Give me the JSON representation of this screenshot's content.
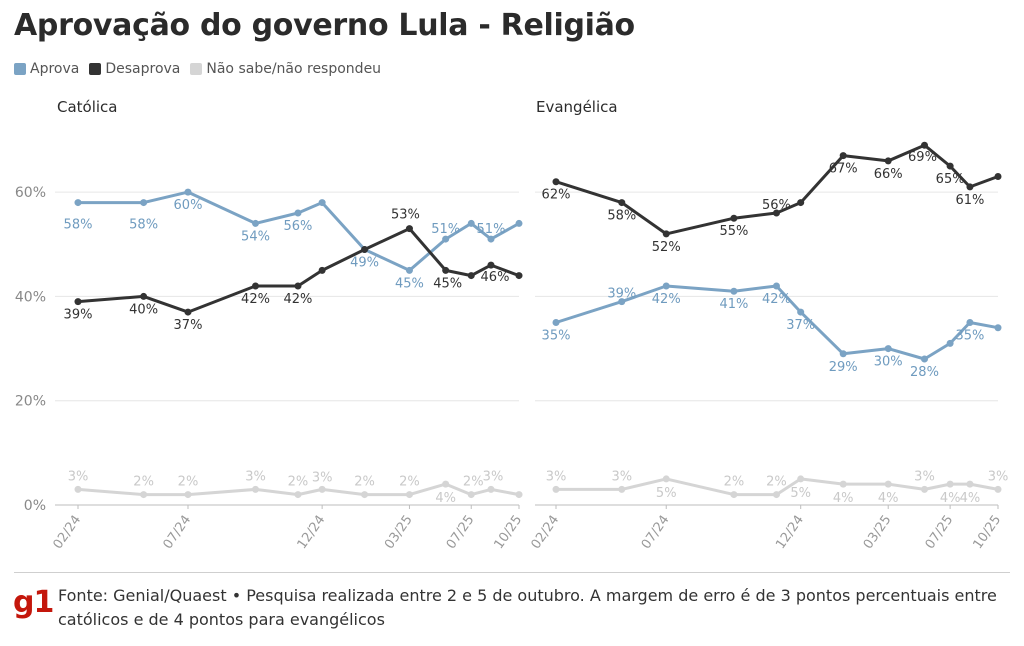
{
  "title": "Aprovação do governo Lula - Religião",
  "legend": [
    {
      "label": "Aprova",
      "color": "#7ba3c4"
    },
    {
      "label": "Desaprova",
      "color": "#333333"
    },
    {
      "label": "Não sabe/não respondeu",
      "color": "#d5d5d5"
    }
  ],
  "footer": {
    "logo": "g1",
    "source": "Fonte: Genial/Quaest • Pesquisa realizada entre 2 e 5 de outubro. A margem de erro é de 3 pontos percentuais entre católicos e de 4 pontos para evangélicos"
  },
  "chart_data": [
    {
      "type": "line",
      "title": "Católica",
      "ylim": [
        0,
        70
      ],
      "yticks": [
        0,
        20,
        40,
        60
      ],
      "ytick_labels": [
        "0%",
        "20%",
        "40%",
        "60%"
      ],
      "x_tick_labels": [
        "02/24",
        "07/24",
        "12/24",
        "03/25",
        "07/25",
        "10/25"
      ],
      "x_tick_index": [
        0,
        2,
        5,
        7,
        9,
        12
      ],
      "series": [
        {
          "name": "Aprova",
          "color": "#7ba3c4",
          "values": [
            58,
            58,
            60,
            54,
            56,
            58,
            49,
            45,
            51,
            54,
            51,
            54
          ],
          "labels": [
            "58%",
            "58%",
            "60%",
            "54%",
            "56%",
            null,
            "49%",
            "45%",
            "51%",
            null,
            "51%",
            null
          ]
        },
        {
          "name": "Desaprova",
          "color": "#333333",
          "values": [
            39,
            40,
            37,
            42,
            42,
            45,
            49,
            53,
            45,
            44,
            46,
            44
          ],
          "labels": [
            "39%",
            "40%",
            "37%",
            "42%",
            "42%",
            null,
            null,
            "53%",
            "45%",
            null,
            "46%",
            null
          ]
        },
        {
          "name": "Não sabe/não respondeu",
          "color": "#d5d5d5",
          "values": [
            3,
            2,
            2,
            3,
            2,
            3,
            2,
            2,
            4,
            2,
            3,
            2
          ],
          "labels": [
            "3%",
            "2%",
            "2%",
            "3%",
            "2%",
            "3%",
            "2%",
            "2%",
            "4%",
            "2%",
            "3%",
            null
          ]
        }
      ]
    },
    {
      "type": "line",
      "title": "Evangélica",
      "ylim": [
        0,
        70
      ],
      "yticks": [
        0,
        20,
        40,
        60
      ],
      "x_tick_labels": [
        "02/24",
        "07/24",
        "12/24",
        "03/25",
        "07/25",
        "10/25"
      ],
      "x_tick_index": [
        0,
        2,
        5,
        7,
        9,
        12
      ],
      "series": [
        {
          "name": "Aprova",
          "color": "#7ba3c4",
          "values": [
            35,
            39,
            42,
            41,
            42,
            37,
            29,
            30,
            28,
            31,
            35,
            34
          ],
          "labels": [
            "35%",
            "39%",
            "42%",
            "41%",
            "42%",
            "37%",
            "29%",
            "30%",
            "28%",
            null,
            "35%",
            null
          ]
        },
        {
          "name": "Desaprova",
          "color": "#333333",
          "values": [
            62,
            58,
            52,
            55,
            56,
            58,
            67,
            66,
            69,
            65,
            61,
            63
          ],
          "labels": [
            "62%",
            "58%",
            "52%",
            "55%",
            "56%",
            null,
            "67%",
            "66%",
            "69%",
            "65%",
            "61%",
            null
          ]
        },
        {
          "name": "Não sabe/não respondeu",
          "color": "#d5d5d5",
          "values": [
            3,
            3,
            5,
            2,
            2,
            5,
            4,
            4,
            3,
            4,
            4,
            3
          ],
          "labels": [
            "3%",
            "3%",
            "5%",
            "2%",
            "2%",
            "5%",
            "4%",
            "4%",
            "3%",
            "4%",
            "4%",
            "3%"
          ]
        }
      ]
    }
  ]
}
